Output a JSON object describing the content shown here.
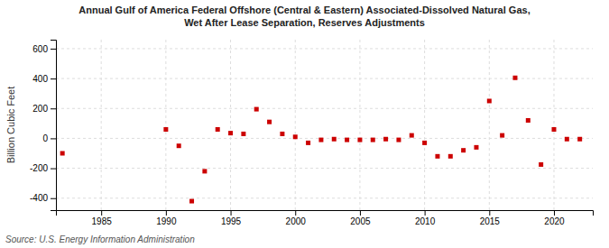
{
  "chart_data": {
    "type": "scatter",
    "title": "Annual Gulf of America Federal Offshore (Central & Eastern) Associated-Dissolved Natural Gas,\nWet After Lease Separation, Reserves Adjustments",
    "y_label": "Billion Cubic Feet",
    "annotations": [
      "Source: U.S. Energy Information Administration"
    ],
    "x": [
      1982,
      1990,
      1991,
      1992,
      1993,
      1994,
      1995,
      1996,
      1997,
      1998,
      1999,
      2000,
      2001,
      2002,
      2003,
      2004,
      2005,
      2006,
      2007,
      2008,
      2009,
      2010,
      2011,
      2012,
      2013,
      2014,
      2015,
      2016,
      2017,
      2018,
      2019,
      2020,
      2021,
      2022
    ],
    "values": [
      -100,
      60,
      -50,
      -420,
      -220,
      60,
      35,
      30,
      195,
      110,
      30,
      10,
      -30,
      -10,
      -5,
      -10,
      -10,
      -10,
      -5,
      -10,
      20,
      -30,
      -120,
      -120,
      -80,
      -60,
      250,
      20,
      405,
      120,
      -175,
      60,
      -5,
      -5
    ],
    "color": "#cc0000",
    "marker": "square",
    "xlim": [
      1981.5,
      2023
    ],
    "ylim": [
      -480,
      660
    ],
    "xticks": [
      1985,
      1990,
      1995,
      2000,
      2005,
      2010,
      2015,
      2020
    ],
    "yticks": [
      -400,
      -200,
      0,
      200,
      400,
      600
    ],
    "grid": true
  }
}
